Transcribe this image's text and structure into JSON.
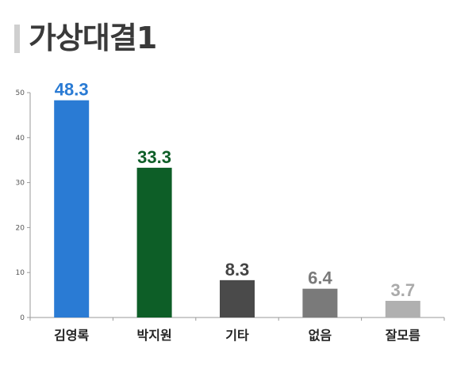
{
  "title": "가상대결1",
  "chart_data": {
    "type": "bar",
    "categories": [
      "김영록",
      "박지원",
      "기타",
      "없음",
      "잘모름"
    ],
    "values": [
      48.3,
      33.3,
      8.3,
      6.4,
      3.7
    ],
    "value_labels": [
      "48.3",
      "33.3",
      "8.3",
      "6.4",
      "3.7"
    ],
    "colors": [
      "#2a7bd4",
      "#0d5e27",
      "#4a4a4a",
      "#7a7a7a",
      "#b0b0b0"
    ],
    "label_colors": [
      "#2a7bd4",
      "#0d5e27",
      "#444444",
      "#7a7a7a",
      "#aaaaaa"
    ],
    "yticks": [
      "0",
      "10",
      "20",
      "30",
      "40",
      "50"
    ],
    "ylim": [
      0,
      50
    ],
    "grid": false,
    "legend": "none"
  }
}
